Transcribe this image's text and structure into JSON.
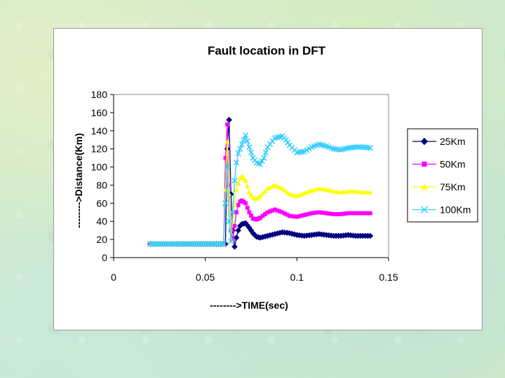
{
  "chart_data": {
    "type": "line",
    "title": "Fault location in DFT",
    "xlabel": "-------->TIME(sec)",
    "ylabel": "-------->Distance(Km)",
    "xlim": [
      0,
      0.15
    ],
    "ylim": [
      0,
      180
    ],
    "xticks": [
      "0",
      "0.05",
      "0.1",
      "0.15"
    ],
    "yticks": [
      "0",
      "20",
      "40",
      "60",
      "80",
      "100",
      "120",
      "140",
      "160",
      "180"
    ],
    "grid": false,
    "legend_position": "right",
    "series": [
      {
        "name": "25Km",
        "color": "#000080",
        "marker": "diamond",
        "x": [
          0.02,
          0.061,
          0.062,
          0.063,
          0.064,
          0.065,
          0.066,
          0.067,
          0.068,
          0.069,
          0.07,
          0.072,
          0.074,
          0.076,
          0.078,
          0.08,
          0.084,
          0.088,
          0.092,
          0.096,
          0.1,
          0.104,
          0.108,
          0.112,
          0.116,
          0.12,
          0.124,
          0.128,
          0.132,
          0.136,
          0.14
        ],
        "y": [
          15,
          15,
          120,
          152,
          70,
          30,
          12,
          22,
          30,
          35,
          37,
          38,
          33,
          27,
          23,
          22,
          24,
          26,
          28,
          27,
          25,
          24,
          25,
          26,
          25,
          24,
          24,
          25,
          24,
          24,
          24
        ]
      },
      {
        "name": "50Km",
        "color": "#ff00ff",
        "marker": "square",
        "x": [
          0.02,
          0.06,
          0.061,
          0.062,
          0.063,
          0.064,
          0.065,
          0.066,
          0.067,
          0.068,
          0.069,
          0.07,
          0.072,
          0.074,
          0.076,
          0.078,
          0.08,
          0.084,
          0.088,
          0.092,
          0.096,
          0.1,
          0.104,
          0.108,
          0.112,
          0.116,
          0.12,
          0.124,
          0.128,
          0.132,
          0.136,
          0.14
        ],
        "y": [
          15,
          15,
          110,
          147,
          80,
          30,
          20,
          35,
          50,
          58,
          62,
          63,
          60,
          50,
          43,
          42,
          44,
          50,
          53,
          50,
          46,
          45,
          47,
          49,
          50,
          49,
          48,
          48,
          49,
          49,
          49,
          49
        ]
      },
      {
        "name": "75Km",
        "color": "#ffff00",
        "marker": "triangle",
        "x": [
          0.02,
          0.06,
          0.061,
          0.062,
          0.063,
          0.064,
          0.065,
          0.066,
          0.067,
          0.068,
          0.069,
          0.07,
          0.072,
          0.074,
          0.076,
          0.078,
          0.08,
          0.084,
          0.088,
          0.092,
          0.096,
          0.1,
          0.104,
          0.108,
          0.112,
          0.116,
          0.12,
          0.124,
          0.128,
          0.132,
          0.136,
          0.14
        ],
        "y": [
          15,
          15,
          75,
          128,
          70,
          20,
          40,
          60,
          75,
          82,
          88,
          90,
          85,
          72,
          66,
          65,
          68,
          76,
          80,
          76,
          70,
          68,
          71,
          74,
          76,
          75,
          73,
          72,
          73,
          73,
          72,
          72
        ]
      },
      {
        "name": "100Km",
        "color": "#33ccff",
        "marker": "x",
        "x": [
          0.02,
          0.06,
          0.061,
          0.062,
          0.063,
          0.064,
          0.065,
          0.066,
          0.067,
          0.068,
          0.069,
          0.07,
          0.072,
          0.074,
          0.076,
          0.078,
          0.08,
          0.082,
          0.084,
          0.088,
          0.092,
          0.094,
          0.096,
          0.1,
          0.104,
          0.108,
          0.112,
          0.116,
          0.12,
          0.124,
          0.128,
          0.132,
          0.136,
          0.14
        ],
        "y": [
          15,
          15,
          60,
          100,
          40,
          18,
          50,
          85,
          105,
          115,
          120,
          125,
          135,
          122,
          110,
          105,
          103,
          110,
          122,
          132,
          134,
          130,
          124,
          116,
          117,
          122,
          125,
          123,
          120,
          119,
          121,
          122,
          122,
          121
        ]
      }
    ]
  }
}
